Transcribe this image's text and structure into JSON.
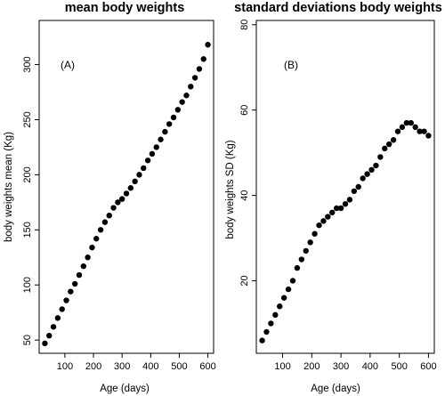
{
  "chart_data": [
    {
      "type": "scatter",
      "title": "mean body weights",
      "panel_label": "(A)",
      "xlabel": "Age (days)",
      "ylabel": "body weights mean (Kg)",
      "xlim": [
        10,
        620
      ],
      "ylim": [
        38,
        340
      ],
      "xticks": [
        100,
        200,
        300,
        400,
        500,
        600
      ],
      "yticks": [
        50,
        100,
        150,
        200,
        250,
        300
      ],
      "series": [
        {
          "x": [
            30,
            45,
            60,
            75,
            90,
            105,
            120,
            135,
            150,
            165,
            180,
            195,
            210,
            225,
            240,
            255,
            270,
            285,
            300,
            315,
            330,
            345,
            360,
            375,
            390,
            405,
            420,
            435,
            450,
            465,
            480,
            495,
            510,
            525,
            540,
            555,
            570,
            585,
            600
          ],
          "y": [
            47,
            54,
            62,
            70,
            78,
            86,
            94,
            101,
            109,
            117,
            125,
            134,
            142,
            150,
            157,
            163,
            170,
            175,
            178,
            183,
            188,
            194,
            200,
            206,
            213,
            219,
            225,
            232,
            239,
            246,
            252,
            259,
            266,
            272,
            280,
            288,
            296,
            305,
            318
          ]
        }
      ]
    },
    {
      "type": "scatter",
      "title": "standard deviations body weights",
      "panel_label": "(B)",
      "xlabel": "Age (days)",
      "ylabel": "body weights SD (Kg)",
      "xlim": [
        10,
        620
      ],
      "ylim": [
        3,
        81
      ],
      "xticks": [
        100,
        200,
        300,
        400,
        500,
        600
      ],
      "yticks": [
        20,
        40,
        60,
        80
      ],
      "series": [
        {
          "x": [
            30,
            45,
            60,
            75,
            90,
            105,
            120,
            135,
            150,
            165,
            180,
            195,
            210,
            225,
            240,
            255,
            270,
            285,
            300,
            315,
            330,
            345,
            360,
            375,
            390,
            405,
            420,
            435,
            450,
            465,
            480,
            495,
            510,
            525,
            540,
            555,
            570,
            585,
            600
          ],
          "y": [
            6,
            8,
            10,
            12,
            14,
            16,
            18,
            20,
            23,
            25,
            27,
            29,
            31,
            33,
            34,
            35,
            36,
            37,
            37,
            38,
            39,
            41,
            42,
            44,
            45,
            46,
            47,
            49,
            51,
            52,
            53,
            55,
            56,
            57,
            57,
            56,
            55,
            55,
            54
          ]
        }
      ]
    }
  ]
}
